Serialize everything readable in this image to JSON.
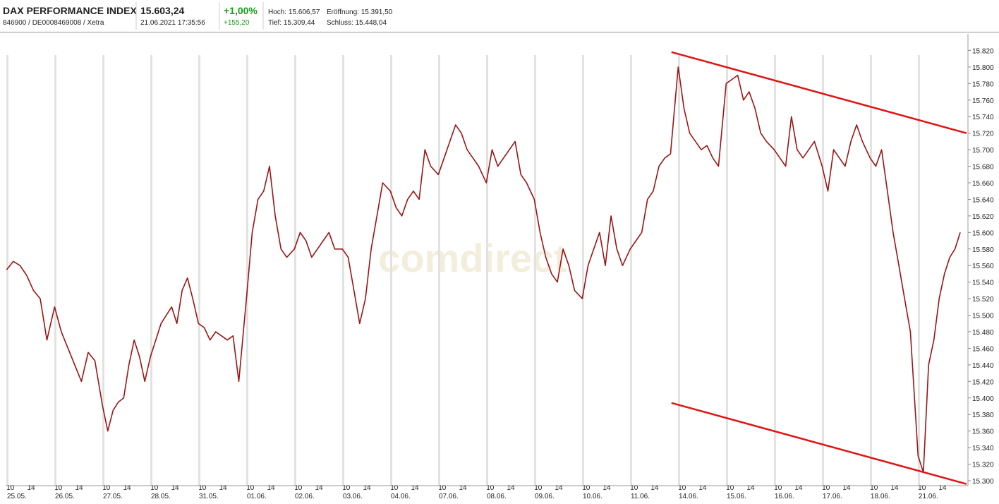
{
  "header": {
    "name": "DAX PERFORMANCE INDEX",
    "ids": "846900 / DE0008469008 / Xetra",
    "price": "15.603,24",
    "timestamp": "21.06.2021 17:35:56",
    "change_pct": "+1,00%",
    "change_abs": "+155,20",
    "high": "Hoch: 15.606,57",
    "open": "Eröffnung: 15.391,50",
    "low": "Tief: 15.309,44",
    "close": "Schluss: 15.448,04",
    "watermark": "comdirect"
  },
  "chart_data": {
    "type": "line",
    "color": "#9c1414",
    "x": [
      0.02,
      0.16,
      0.3,
      0.44,
      0.58,
      0.72,
      0.86,
      1.02,
      1.16,
      1.3,
      1.44,
      1.58,
      1.72,
      1.86,
      2.02,
      2.13,
      2.24,
      2.35,
      2.46,
      2.57,
      2.68,
      2.79,
      2.9,
      3.02,
      3.13,
      3.24,
      3.35,
      3.46,
      3.57,
      3.68,
      3.79,
      3.9,
      4.02,
      4.14,
      4.26,
      4.38,
      4.5,
      4.62,
      4.74,
      4.86,
      5.02,
      5.14,
      5.26,
      5.38,
      5.5,
      5.62,
      5.74,
      5.86,
      6.02,
      6.14,
      6.26,
      6.38,
      6.5,
      6.62,
      6.74,
      6.86,
      7.02,
      7.14,
      7.26,
      7.38,
      7.5,
      7.62,
      7.74,
      7.86,
      8.02,
      8.14,
      8.26,
      8.38,
      8.5,
      8.62,
      8.74,
      8.86,
      9.02,
      9.14,
      9.26,
      9.38,
      9.5,
      9.62,
      9.74,
      9.86,
      10.02,
      10.14,
      10.26,
      10.38,
      10.5,
      10.62,
      10.74,
      10.86,
      11.02,
      11.14,
      11.26,
      11.38,
      11.5,
      11.62,
      11.74,
      11.86,
      12.02,
      12.14,
      12.26,
      12.38,
      12.5,
      12.62,
      12.74,
      12.86,
      13.02,
      13.14,
      13.26,
      13.38,
      13.5,
      13.62,
      13.74,
      13.86,
      14.02,
      14.14,
      14.26,
      14.38,
      14.5,
      14.62,
      14.74,
      14.86,
      15.02,
      15.14,
      15.26,
      15.38,
      15.5,
      15.62,
      15.74,
      15.86,
      16.02,
      16.14,
      16.26,
      16.38,
      16.5,
      16.62,
      16.74,
      16.86,
      17.02,
      17.14,
      17.26,
      17.38,
      17.5,
      17.62,
      17.74,
      17.86,
      18.02,
      18.14,
      18.26,
      18.38,
      18.5,
      18.62,
      18.74,
      18.86,
      19.02,
      19.13,
      19.24,
      19.35,
      19.46,
      19.57,
      19.68,
      19.79,
      19.9
    ],
    "values": [
      15555,
      15565,
      15560,
      15548,
      15530,
      15520,
      15470,
      15510,
      15480,
      15460,
      15440,
      15420,
      15455,
      15445,
      15390,
      15360,
      15385,
      15395,
      15400,
      15440,
      15470,
      15450,
      15420,
      15450,
      15470,
      15490,
      15500,
      15510,
      15490,
      15530,
      15545,
      15520,
      15490,
      15485,
      15470,
      15480,
      15475,
      15470,
      15475,
      15420,
      15520,
      15600,
      15640,
      15650,
      15680,
      15620,
      15580,
      15570,
      15580,
      15600,
      15590,
      15570,
      15580,
      15590,
      15600,
      15580,
      15580,
      15570,
      15530,
      15490,
      15520,
      15580,
      15620,
      15660,
      15650,
      15630,
      15620,
      15640,
      15650,
      15640,
      15700,
      15680,
      15670,
      15690,
      15710,
      15730,
      15720,
      15700,
      15690,
      15680,
      15660,
      15700,
      15680,
      15690,
      15700,
      15710,
      15670,
      15660,
      15640,
      15600,
      15570,
      15550,
      15540,
      15580,
      15560,
      15530,
      15520,
      15560,
      15580,
      15600,
      15560,
      15620,
      15580,
      15560,
      15580,
      15590,
      15600,
      15640,
      15650,
      15680,
      15690,
      15695,
      15800,
      15750,
      15720,
      15710,
      15700,
      15705,
      15690,
      15680,
      15780,
      15785,
      15790,
      15760,
      15770,
      15750,
      15720,
      15710,
      15700,
      15690,
      15680,
      15740,
      15700,
      15690,
      15700,
      15710,
      15680,
      15650,
      15700,
      15690,
      15680,
      15710,
      15730,
      15710,
      15690,
      15680,
      15700,
      15650,
      15600,
      15560,
      15520,
      15480,
      15330,
      15310,
      15440,
      15470,
      15520,
      15550,
      15570,
      15580,
      15600
    ],
    "xlim": [
      0,
      20.06
    ],
    "ylim": [
      15294,
      15840
    ],
    "yticks": [
      {
        "value": 15300,
        "label": "15.300"
      },
      {
        "value": 15320,
        "label": "15.320"
      },
      {
        "value": 15340,
        "label": "15.340"
      },
      {
        "value": 15360,
        "label": "15.360"
      },
      {
        "value": 15380,
        "label": "15.380"
      },
      {
        "value": 15400,
        "label": "15.400"
      },
      {
        "value": 15420,
        "label": "15.420"
      },
      {
        "value": 15440,
        "label": "15.440"
      },
      {
        "value": 15460,
        "label": "15.460"
      },
      {
        "value": 15480,
        "label": "15.480"
      },
      {
        "value": 15500,
        "label": "15.500"
      },
      {
        "value": 15520,
        "label": "15.520"
      },
      {
        "value": 15540,
        "label": "15.540"
      },
      {
        "value": 15560,
        "label": "15.560"
      },
      {
        "value": 15580,
        "label": "15.580"
      },
      {
        "value": 15600,
        "label": "15.600"
      },
      {
        "value": 15620,
        "label": "15.620"
      },
      {
        "value": 15640,
        "label": "15.640"
      },
      {
        "value": 15660,
        "label": "15.660"
      },
      {
        "value": 15680,
        "label": "15.680"
      },
      {
        "value": 15700,
        "label": "15.700"
      },
      {
        "value": 15720,
        "label": "15.720"
      },
      {
        "value": 15740,
        "label": "15.740"
      },
      {
        "value": 15760,
        "label": "15.760"
      },
      {
        "value": 15780,
        "label": "15.780"
      },
      {
        "value": 15800,
        "label": "15.800"
      },
      {
        "value": 15820,
        "label": "15.820"
      }
    ],
    "xticks": [
      {
        "value": 0.1,
        "label": "10"
      },
      {
        "value": 0.53,
        "label": "14"
      },
      {
        "value": 1.1,
        "label": "10"
      },
      {
        "value": 1.53,
        "label": "14"
      },
      {
        "value": 2.1,
        "label": "10"
      },
      {
        "value": 2.53,
        "label": "14"
      },
      {
        "value": 3.1,
        "label": "10"
      },
      {
        "value": 3.53,
        "label": "14"
      },
      {
        "value": 4.1,
        "label": "10"
      },
      {
        "value": 4.53,
        "label": "14"
      },
      {
        "value": 5.1,
        "label": "10"
      },
      {
        "value": 5.53,
        "label": "14"
      },
      {
        "value": 6.1,
        "label": "10"
      },
      {
        "value": 6.53,
        "label": "14"
      },
      {
        "value": 7.1,
        "label": "10"
      },
      {
        "value": 7.53,
        "label": "14"
      },
      {
        "value": 8.1,
        "label": "10"
      },
      {
        "value": 8.53,
        "label": "14"
      },
      {
        "value": 9.1,
        "label": "10"
      },
      {
        "value": 9.53,
        "label": "14"
      },
      {
        "value": 10.1,
        "label": "10"
      },
      {
        "value": 10.53,
        "label": "14"
      },
      {
        "value": 11.1,
        "label": "10"
      },
      {
        "value": 11.53,
        "label": "14"
      },
      {
        "value": 12.1,
        "label": "10"
      },
      {
        "value": 12.53,
        "label": "14"
      },
      {
        "value": 13.1,
        "label": "10"
      },
      {
        "value": 13.53,
        "label": "14"
      },
      {
        "value": 14.1,
        "label": "10"
      },
      {
        "value": 14.53,
        "label": "14"
      },
      {
        "value": 15.1,
        "label": "10"
      },
      {
        "value": 15.53,
        "label": "14"
      },
      {
        "value": 16.1,
        "label": "10"
      },
      {
        "value": 16.53,
        "label": "14"
      },
      {
        "value": 17.1,
        "label": "10"
      },
      {
        "value": 17.53,
        "label": "14"
      },
      {
        "value": 18.1,
        "label": "10"
      },
      {
        "value": 18.53,
        "label": "14"
      },
      {
        "value": 19.1,
        "label": "10"
      },
      {
        "value": 19.53,
        "label": "14"
      }
    ],
    "day_ticks": [
      {
        "value": 0,
        "label": "25.05."
      },
      {
        "value": 1,
        "label": "26.05."
      },
      {
        "value": 2,
        "label": "27.05."
      },
      {
        "value": 3,
        "label": "28.05."
      },
      {
        "value": 4,
        "label": "31.05."
      },
      {
        "value": 5,
        "label": "01.06."
      },
      {
        "value": 6,
        "label": "02.06."
      },
      {
        "value": 7,
        "label": "03.06."
      },
      {
        "value": 8,
        "label": "04.06."
      },
      {
        "value": 9,
        "label": "07.06."
      },
      {
        "value": 10,
        "label": "08.06."
      },
      {
        "value": 11,
        "label": "09.06."
      },
      {
        "value": 12,
        "label": "10.06."
      },
      {
        "value": 13,
        "label": "11.06."
      },
      {
        "value": 14,
        "label": "14.06."
      },
      {
        "value": 15,
        "label": "15.06."
      },
      {
        "value": 16,
        "label": "16.06."
      },
      {
        "value": 17,
        "label": "17.06."
      },
      {
        "value": 18,
        "label": "18.06."
      },
      {
        "value": 19,
        "label": "21.06."
      }
    ],
    "trendline_color": "#e01414",
    "trendlines": [
      {
        "x": [
          13.88,
          20.03
        ],
        "y": [
          15818,
          15720
        ]
      },
      {
        "x": [
          13.88,
          20.03
        ],
        "y": [
          15394,
          15296
        ]
      }
    ]
  }
}
